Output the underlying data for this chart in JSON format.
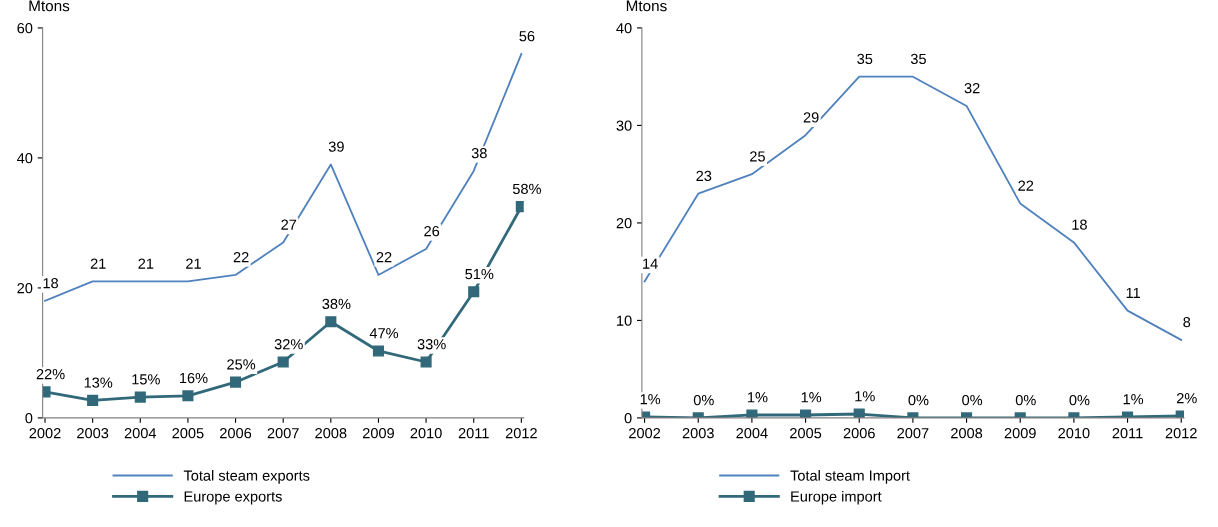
{
  "chart_data": [
    {
      "type": "line",
      "ylabel": "Mtons",
      "categories": [
        "2002",
        "2003",
        "2004",
        "2005",
        "2006",
        "2007",
        "2008",
        "2009",
        "2010",
        "2011",
        "2012"
      ],
      "ylim": [
        0,
        60
      ],
      "yticks": [
        0,
        20,
        40,
        60
      ],
      "grid": false,
      "legend": "bottom",
      "series": [
        {
          "name": "Total steam exports",
          "color": "#4f81bd",
          "marker": "none",
          "values": [
            18,
            21,
            21,
            21,
            22,
            27,
            39,
            22,
            26,
            38,
            56
          ],
          "value_labels": [
            "18",
            "21",
            "21",
            "21",
            "22",
            "27",
            "39",
            "22",
            "26",
            "38",
            "56"
          ]
        },
        {
          "name": "Europe exports",
          "color": "#31697a",
          "marker": "square",
          "values": [
            4.0,
            2.7,
            3.2,
            3.4,
            5.5,
            8.6,
            14.8,
            10.3,
            8.6,
            19.4,
            32.5
          ]
        }
      ],
      "annotations": [
        {
          "text": "22%",
          "x": "2002",
          "y": 4.0
        },
        {
          "text": "13%",
          "x": "2003",
          "y": 2.7
        },
        {
          "text": "15%",
          "x": "2004",
          "y": 3.2
        },
        {
          "text": "16%",
          "x": "2005",
          "y": 3.4
        },
        {
          "text": "25%",
          "x": "2006",
          "y": 5.5
        },
        {
          "text": "32%",
          "x": "2007",
          "y": 8.6
        },
        {
          "text": "38%",
          "x": "2008",
          "y": 14.8
        },
        {
          "text": "47%",
          "x": "2009",
          "y": 10.3
        },
        {
          "text": "33%",
          "x": "2010",
          "y": 8.6
        },
        {
          "text": "51%",
          "x": "2011",
          "y": 19.4
        },
        {
          "text": "58%",
          "x": "2012",
          "y": 32.5
        }
      ]
    },
    {
      "type": "line",
      "ylabel": "Mtons",
      "categories": [
        "2002",
        "2003",
        "2004",
        "2005",
        "2006",
        "2007",
        "2008",
        "2009",
        "2010",
        "2011",
        "2012"
      ],
      "ylim": [
        0,
        40
      ],
      "yticks": [
        0,
        10,
        20,
        30,
        40
      ],
      "grid": false,
      "legend": "bottom",
      "series": [
        {
          "name": "Total steam Import",
          "color": "#4f81bd",
          "marker": "none",
          "values": [
            14,
            23,
            25,
            29,
            35,
            35,
            32,
            22,
            18,
            11,
            8
          ],
          "value_labels": [
            "14",
            "23",
            "25",
            "29",
            "35",
            "35",
            "32",
            "22",
            "18",
            "11",
            "8"
          ]
        },
        {
          "name": "Europe import",
          "color": "#31697a",
          "marker": "square",
          "values": [
            0.1,
            0,
            0.3,
            0.3,
            0.4,
            0,
            0,
            0,
            0,
            0.1,
            0.2
          ]
        }
      ],
      "annotations": [
        {
          "text": "1%",
          "x": "2002",
          "y": 0.1
        },
        {
          "text": "0%",
          "x": "2003",
          "y": 0
        },
        {
          "text": "1%",
          "x": "2004",
          "y": 0.3
        },
        {
          "text": "1%",
          "x": "2005",
          "y": 0.3
        },
        {
          "text": "1%",
          "x": "2006",
          "y": 0.4
        },
        {
          "text": "0%",
          "x": "2007",
          "y": 0
        },
        {
          "text": "0%",
          "x": "2008",
          "y": 0
        },
        {
          "text": "0%",
          "x": "2009",
          "y": 0
        },
        {
          "text": "0%",
          "x": "2010",
          "y": 0
        },
        {
          "text": "1%",
          "x": "2011",
          "y": 0.1
        },
        {
          "text": "2%",
          "x": "2012",
          "y": 0.2
        }
      ]
    }
  ]
}
